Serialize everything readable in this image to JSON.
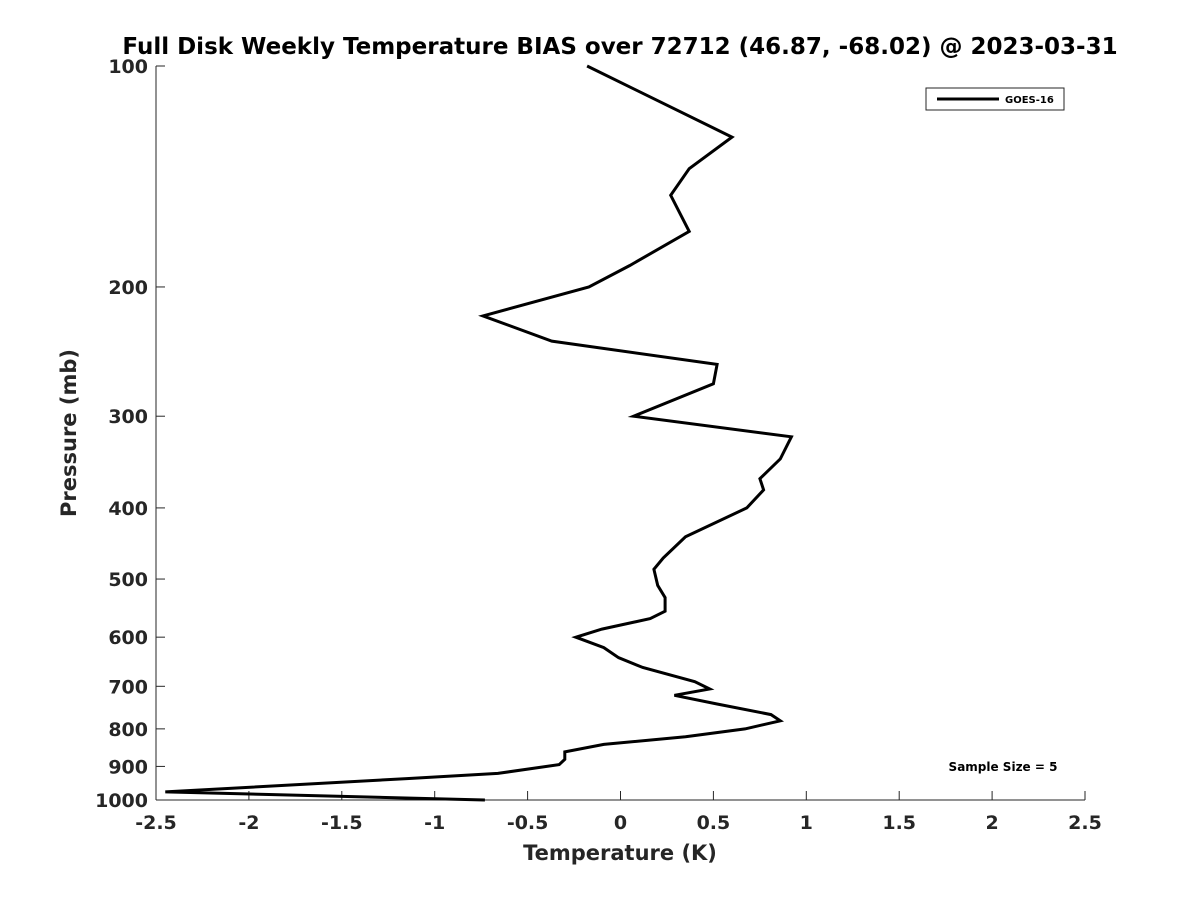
{
  "chart_data": {
    "type": "line",
    "title": "Full Disk Weekly Temperature BIAS over 72712 (46.87, -68.02) @ 2023-03-31",
    "xlabel": "Temperature (K)",
    "ylabel": "Pressure (mb)",
    "xlim": [
      -2.5,
      2.5
    ],
    "ylim": [
      100,
      1000
    ],
    "y_reversed": true,
    "y_scale": "log",
    "grid": false,
    "legend_position": "top-right",
    "x_ticks": [
      "-2.5",
      "-2",
      "-1.5",
      "-1",
      "-0.5",
      "0",
      "0.5",
      "1",
      "1.5",
      "2",
      "2.5"
    ],
    "y_ticks": [
      "100",
      "200",
      "300",
      "400",
      "500",
      "600",
      "700",
      "800",
      "900",
      "1000"
    ],
    "series": [
      {
        "name": "GOES-16",
        "color": "#000000",
        "points": [
          {
            "x": -0.18,
            "y": 100
          },
          {
            "x": 0.6,
            "y": 125
          },
          {
            "x": 0.37,
            "y": 138
          },
          {
            "x": 0.27,
            "y": 150
          },
          {
            "x": 0.37,
            "y": 168
          },
          {
            "x": 0.05,
            "y": 187
          },
          {
            "x": -0.17,
            "y": 200
          },
          {
            "x": -0.74,
            "y": 219
          },
          {
            "x": -0.37,
            "y": 237
          },
          {
            "x": 0.52,
            "y": 255
          },
          {
            "x": 0.5,
            "y": 271
          },
          {
            "x": 0.07,
            "y": 300
          },
          {
            "x": 0.92,
            "y": 320
          },
          {
            "x": 0.86,
            "y": 343
          },
          {
            "x": 0.75,
            "y": 365
          },
          {
            "x": 0.77,
            "y": 378
          },
          {
            "x": 0.68,
            "y": 400
          },
          {
            "x": 0.35,
            "y": 438
          },
          {
            "x": 0.23,
            "y": 468
          },
          {
            "x": 0.18,
            "y": 485
          },
          {
            "x": 0.2,
            "y": 510
          },
          {
            "x": 0.24,
            "y": 530
          },
          {
            "x": 0.24,
            "y": 553
          },
          {
            "x": 0.16,
            "y": 566
          },
          {
            "x": -0.1,
            "y": 585
          },
          {
            "x": -0.24,
            "y": 600
          },
          {
            "x": -0.09,
            "y": 620
          },
          {
            "x": -0.01,
            "y": 640
          },
          {
            "x": 0.12,
            "y": 660
          },
          {
            "x": 0.4,
            "y": 690
          },
          {
            "x": 0.48,
            "y": 706
          },
          {
            "x": 0.29,
            "y": 720
          },
          {
            "x": 0.52,
            "y": 740
          },
          {
            "x": 0.81,
            "y": 765
          },
          {
            "x": 0.86,
            "y": 780
          },
          {
            "x": 0.67,
            "y": 800
          },
          {
            "x": 0.35,
            "y": 820
          },
          {
            "x": -0.09,
            "y": 840
          },
          {
            "x": -0.3,
            "y": 860
          },
          {
            "x": -0.3,
            "y": 880
          },
          {
            "x": -0.33,
            "y": 895
          },
          {
            "x": -0.66,
            "y": 920
          },
          {
            "x": -1.15,
            "y": 935
          },
          {
            "x": -2.45,
            "y": 975
          },
          {
            "x": -0.73,
            "y": 1000
          }
        ]
      }
    ],
    "annotation": "Sample Size = 5"
  }
}
